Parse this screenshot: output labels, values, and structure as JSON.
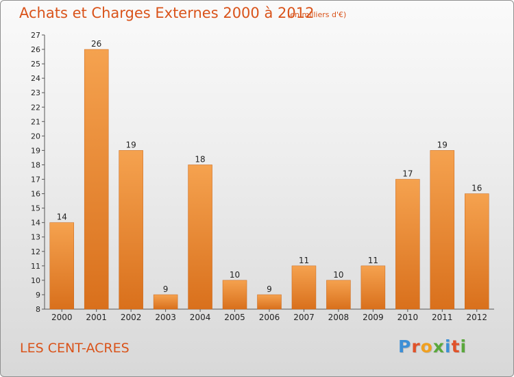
{
  "header": {
    "title": "Achats et Charges Externes 2000 à 2012",
    "unit_note": "(en milliers d'€)"
  },
  "footer": {
    "place_name": "LES CENT-ACRES",
    "logo_text": "Proxiti"
  },
  "colors": {
    "title": "#d9531a",
    "bar_light": "#f5a24f",
    "bar_dark": "#d9701c"
  },
  "chart_data": {
    "type": "bar",
    "title": "Achats et Charges Externes 2000 à 2012",
    "subtitle": "(en milliers d'€)",
    "categories": [
      "2000",
      "2001",
      "2002",
      "2003",
      "2004",
      "2005",
      "2006",
      "2007",
      "2008",
      "2009",
      "2010",
      "2011",
      "2012"
    ],
    "values": [
      14,
      26,
      19,
      9,
      18,
      10,
      9,
      11,
      10,
      11,
      17,
      19,
      16
    ],
    "ylim": [
      8,
      27
    ],
    "yticks": [
      8,
      9,
      10,
      11,
      12,
      13,
      14,
      15,
      16,
      17,
      18,
      19,
      20,
      21,
      22,
      23,
      24,
      25,
      26,
      27
    ],
    "grid": false,
    "xlabel": "",
    "ylabel": ""
  }
}
